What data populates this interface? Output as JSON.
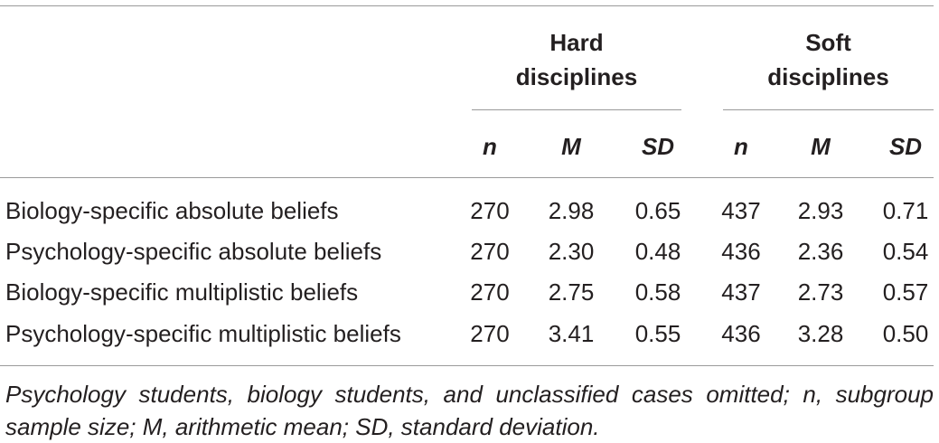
{
  "table": {
    "groups": [
      "Hard\ndisciplines",
      "Soft\ndisciplines"
    ],
    "group_labels": {
      "hard_line1": "Hard",
      "hard_line2": "disciplines",
      "soft_line1": "Soft",
      "soft_line2": "disciplines"
    },
    "subheaders": {
      "n": "n",
      "m": "M",
      "sd": "SD"
    },
    "rows": [
      {
        "label": "Biology-specific absolute beliefs",
        "hard_n": "270",
        "hard_m": "2.98",
        "hard_sd": "0.65",
        "soft_n": "437",
        "soft_m": "2.93",
        "soft_sd": "0.71"
      },
      {
        "label": "Psychology-specific absolute beliefs",
        "hard_n": "270",
        "hard_m": "2.30",
        "hard_sd": "0.48",
        "soft_n": "436",
        "soft_m": "2.36",
        "soft_sd": "0.54"
      },
      {
        "label": "Biology-specific multiplistic beliefs",
        "hard_n": "270",
        "hard_m": "2.75",
        "hard_sd": "0.58",
        "soft_n": "437",
        "soft_m": "2.73",
        "soft_sd": "0.57"
      },
      {
        "label": "Psychology-specific multiplistic beliefs",
        "hard_n": "270",
        "hard_m": "3.41",
        "hard_sd": "0.55",
        "soft_n": "436",
        "soft_m": "3.28",
        "soft_sd": "0.50"
      }
    ],
    "footnote": "Psychology students, biology students, and unclassified cases omitted; n, subgroup sample size; M, arithmetic mean; SD, standard deviation."
  }
}
